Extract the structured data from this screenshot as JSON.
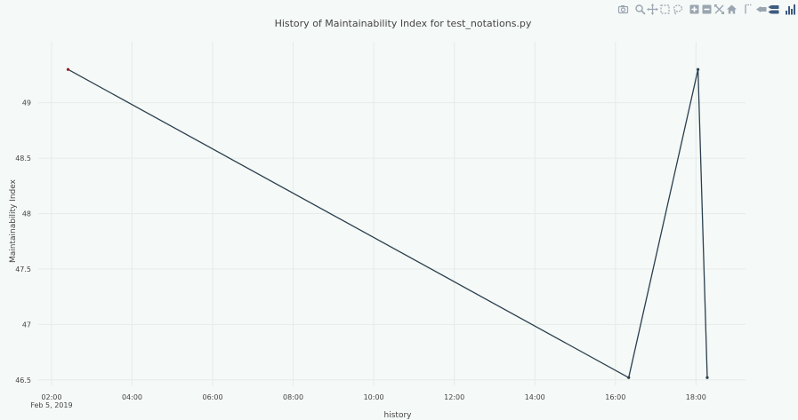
{
  "chart_data": {
    "type": "line",
    "title": "History of Maintainability Index for test_notations.py",
    "xlabel": "history",
    "ylabel": "Maintainability Index",
    "x_ticks": [
      {
        "hour": 2,
        "label": "02:00",
        "sublabel": "Feb 5, 2019"
      },
      {
        "hour": 4,
        "label": "04:00"
      },
      {
        "hour": 6,
        "label": "06:00"
      },
      {
        "hour": 8,
        "label": "08:00"
      },
      {
        "hour": 10,
        "label": "10:00"
      },
      {
        "hour": 12,
        "label": "12:00"
      },
      {
        "hour": 14,
        "label": "14:00"
      },
      {
        "hour": 16,
        "label": "16:00"
      },
      {
        "hour": 18,
        "label": "18:00"
      }
    ],
    "y_ticks": [
      {
        "value": 46.5,
        "label": "46.5"
      },
      {
        "value": 47,
        "label": "47"
      },
      {
        "value": 47.5,
        "label": "47.5"
      },
      {
        "value": 48,
        "label": "48"
      },
      {
        "value": 48.5,
        "label": "48.5"
      },
      {
        "value": 49,
        "label": "49"
      }
    ],
    "xlim_hours": [
      1.67,
      19.23
    ],
    "ylim": [
      46.45,
      49.55
    ],
    "grid": true,
    "series": [
      {
        "color": "#2a3f4f",
        "points": [
          {
            "x": "2019-02-05 02:25",
            "hour": 2.41,
            "y": 49.3
          },
          {
            "x": "2019-02-05 16:20",
            "hour": 16.33,
            "y": 46.52
          },
          {
            "x": "2019-02-05 18:03",
            "hour": 18.05,
            "y": 49.3
          },
          {
            "x": "2019-02-05 18:17",
            "hour": 18.28,
            "y": 46.52
          }
        ]
      }
    ]
  },
  "colors": {
    "background": "#f5f9f7",
    "grid": "#e6ece9",
    "line": "#2a3f4f",
    "first_marker": "#8b1e1e",
    "modebar_icon": "#9aa5b1",
    "modebar_active": "#3d5a80"
  },
  "modebar": [
    {
      "name": "camera-icon",
      "glyph": "camera"
    },
    {
      "name": "zoom-icon",
      "glyph": "zoom"
    },
    {
      "name": "pan-icon",
      "glyph": "pan"
    },
    {
      "name": "box-select-icon",
      "glyph": "box"
    },
    {
      "name": "lasso-select-icon",
      "glyph": "lasso"
    },
    {
      "name": "zoom-in-icon",
      "glyph": "plus"
    },
    {
      "name": "zoom-out-icon",
      "glyph": "minus"
    },
    {
      "name": "autoscale-icon",
      "glyph": "autoscale"
    },
    {
      "name": "reset-axes-icon",
      "glyph": "home"
    },
    {
      "name": "toggle-spike-lines-icon",
      "glyph": "spike"
    },
    {
      "name": "hover-closest-icon",
      "glyph": "closest"
    },
    {
      "name": "hover-compare-icon",
      "glyph": "compare"
    },
    {
      "name": "plotly-logo-icon",
      "glyph": "logo"
    }
  ]
}
